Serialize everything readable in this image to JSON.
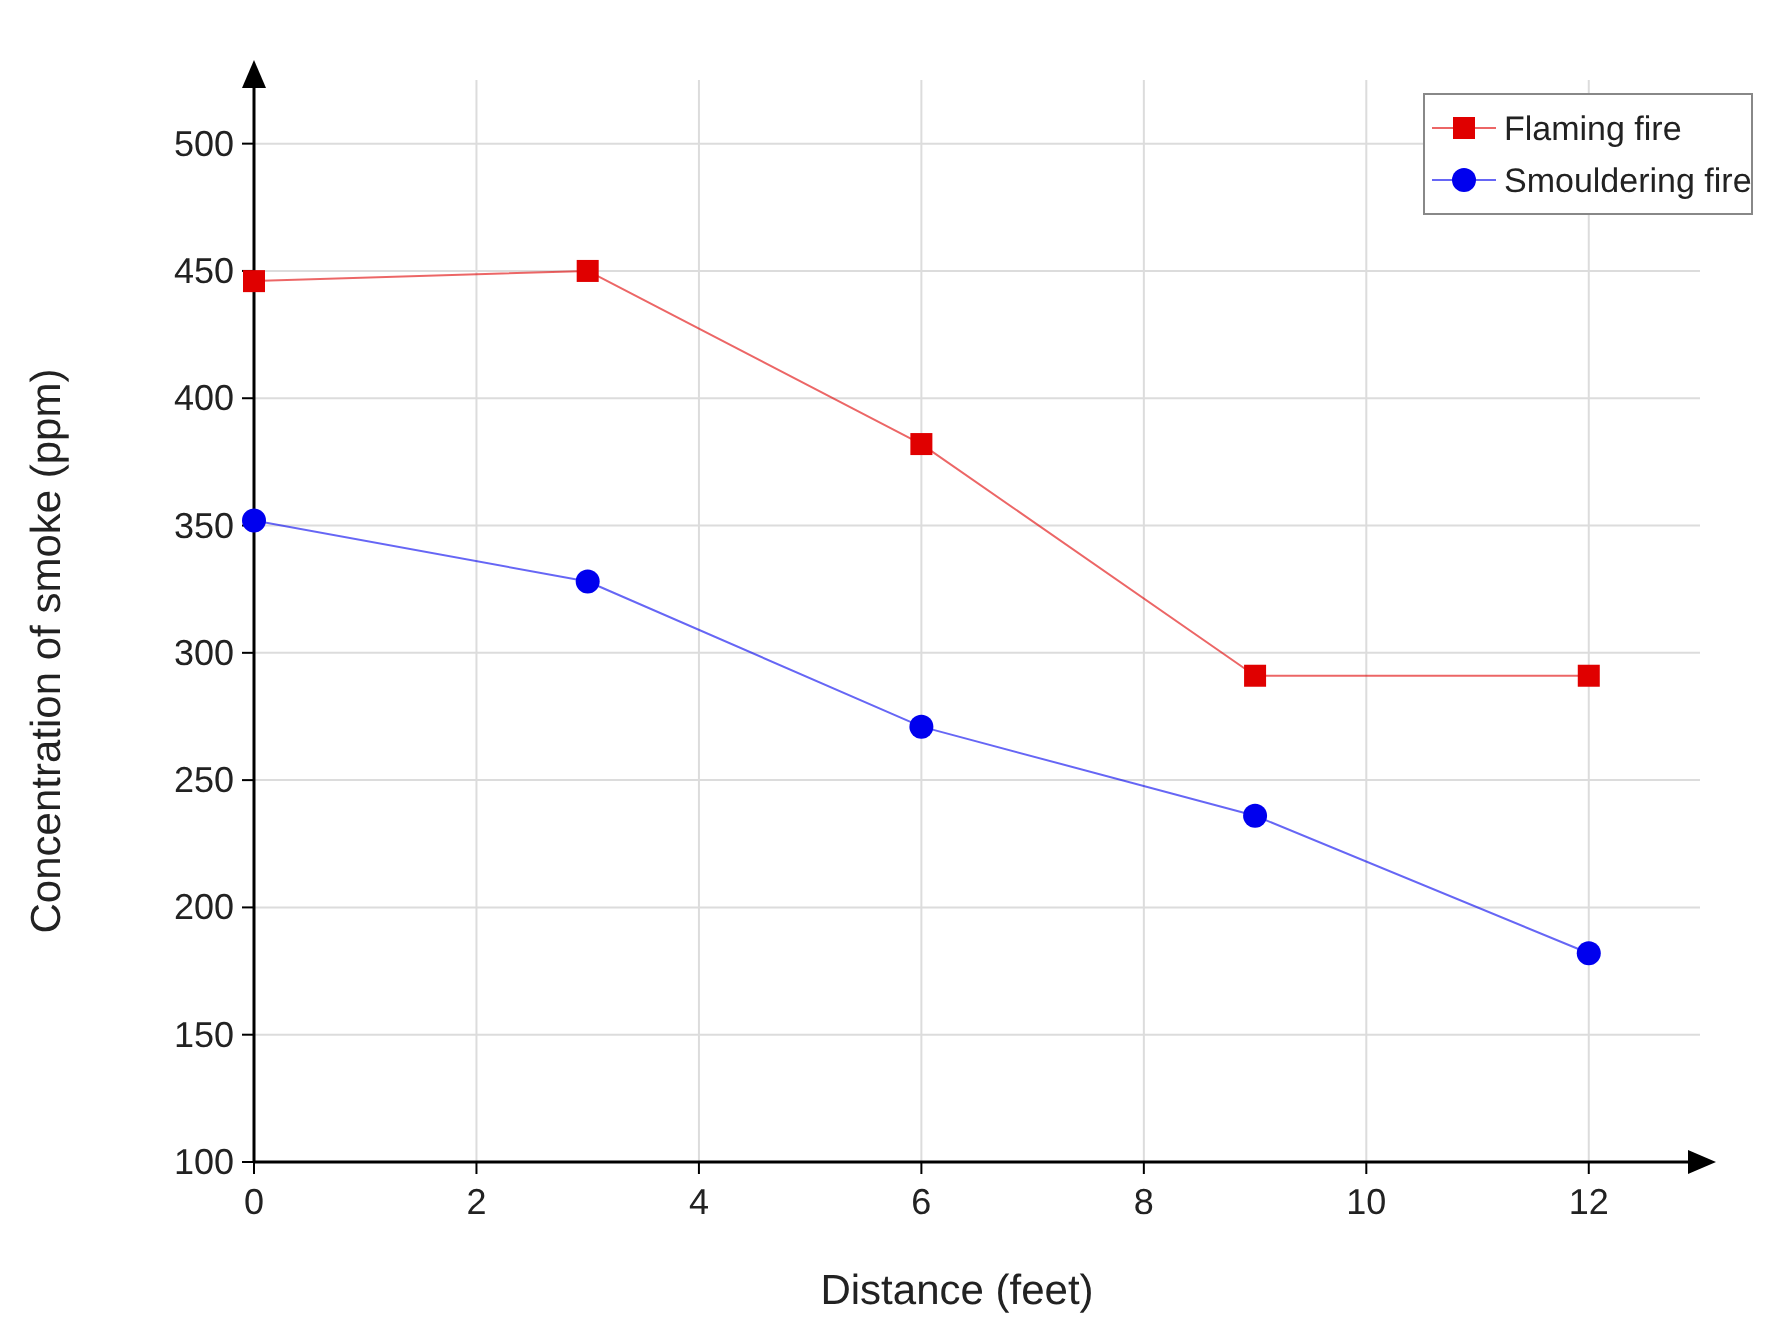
{
  "chart_data": {
    "type": "line",
    "xlabel": "Distance (feet)",
    "ylabel": "Concentration of smoke (ppm)",
    "x": [
      0,
      3,
      6,
      9,
      12
    ],
    "series": [
      {
        "name": "Flaming fire",
        "color": "#e00000",
        "marker": "square",
        "values": [
          446,
          450,
          382,
          291,
          291
        ]
      },
      {
        "name": "Smouldering fire",
        "color": "#0000ee",
        "marker": "circle",
        "values": [
          352,
          328,
          271,
          236,
          182
        ]
      }
    ],
    "xlim": [
      0,
      13
    ],
    "ylim": [
      100,
      525
    ],
    "xticks": [
      0,
      2,
      4,
      6,
      8,
      10,
      12
    ],
    "yticks": [
      100,
      150,
      200,
      250,
      300,
      350,
      400,
      450,
      500
    ],
    "grid": true,
    "legend": "top right",
    "line_style": "solid"
  }
}
